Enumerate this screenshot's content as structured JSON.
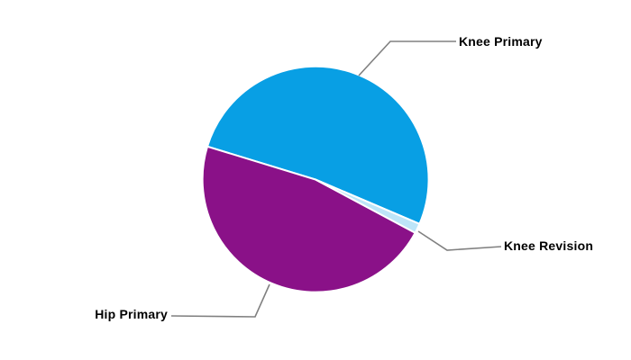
{
  "chart_data": {
    "type": "pie",
    "title": "",
    "background_color": "#FFFFFF",
    "start_angle_deg": 197,
    "direction": "clockwise",
    "categories": [
      "Knee Primary",
      "Knee Revision",
      "Hip Primary"
    ],
    "values": [
      51.7,
      1.4,
      46.9
    ],
    "slices": [
      {
        "label": "Knee Primary",
        "value": 51.7,
        "color": "#089FE4"
      },
      {
        "label": "Knee Revision",
        "value": 1.4,
        "color": "#BDE5F8"
      },
      {
        "label": "Hip Primary",
        "value": 46.9,
        "color": "#8A1188"
      }
    ],
    "slice_border_color": "#FFFFFF",
    "leader_line_color": "#808080",
    "label_text_color": "#000000",
    "legend": "none"
  }
}
